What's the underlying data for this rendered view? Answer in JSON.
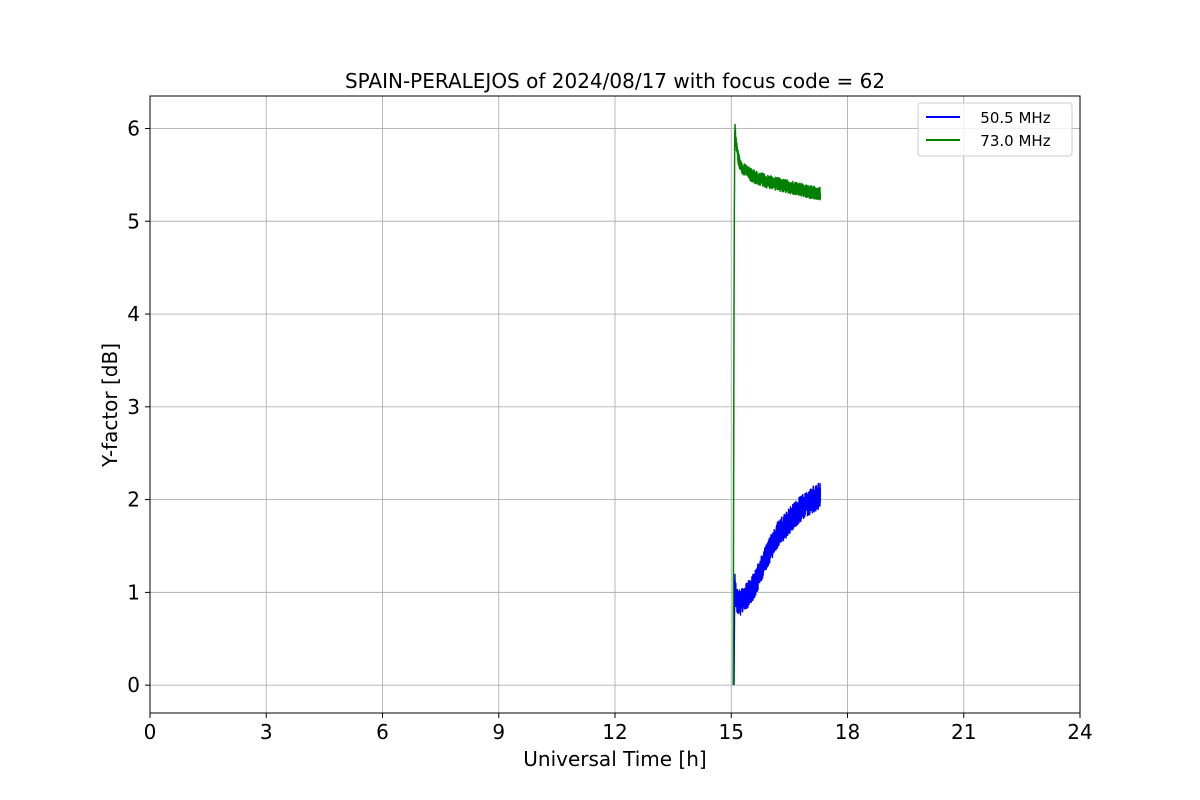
{
  "chart_data": {
    "type": "line",
    "title": "SPAIN-PERALEJOS of 2024/08/17 with focus code = 62",
    "xlabel": "Universal Time [h]",
    "ylabel": "Y-factor [dB]",
    "xlim": [
      0,
      24
    ],
    "ylim": [
      -0.3,
      6.35
    ],
    "xticks": [
      0,
      3,
      6,
      9,
      12,
      15,
      18,
      21,
      24
    ],
    "yticks": [
      0,
      1,
      2,
      3,
      4,
      5,
      6
    ],
    "grid": true,
    "legend_position": "upper right",
    "series": [
      {
        "name": "   50.5 MHz",
        "color": "#0000ff",
        "x": [
          15.07,
          15.08,
          15.09,
          15.1,
          15.12,
          15.15,
          15.2,
          15.3,
          15.4,
          15.5,
          15.6,
          15.7,
          15.8,
          15.9,
          16.0,
          16.1,
          16.2,
          16.3,
          16.4,
          16.5,
          16.6,
          16.7,
          16.8,
          16.9,
          17.0,
          17.1,
          17.2,
          17.3
        ],
        "y": [
          0.0,
          0.6,
          1.15,
          1.0,
          0.95,
          0.9,
          0.88,
          0.92,
          0.96,
          1.02,
          1.08,
          1.18,
          1.28,
          1.38,
          1.46,
          1.54,
          1.62,
          1.67,
          1.72,
          1.77,
          1.82,
          1.86,
          1.9,
          1.94,
          1.97,
          2.0,
          2.02,
          2.05
        ],
        "noise_band": 0.14
      },
      {
        "name": "   73.0 MHz",
        "color": "#008000",
        "x": [
          15.05,
          15.07,
          15.08,
          15.09,
          15.1,
          15.12,
          15.15,
          15.2,
          15.3,
          15.4,
          15.5,
          15.6,
          15.7,
          15.8,
          15.9,
          16.0,
          16.1,
          16.2,
          16.3,
          16.4,
          16.5,
          16.6,
          16.7,
          16.8,
          16.9,
          17.0,
          17.1,
          17.2,
          17.3
        ],
        "y": [
          0.0,
          3.85,
          5.1,
          5.95,
          6.0,
          5.85,
          5.75,
          5.65,
          5.57,
          5.53,
          5.5,
          5.48,
          5.46,
          5.45,
          5.43,
          5.42,
          5.41,
          5.4,
          5.39,
          5.38,
          5.37,
          5.36,
          5.35,
          5.34,
          5.33,
          5.32,
          5.31,
          5.3,
          5.3
        ],
        "noise_band": 0.07
      }
    ]
  }
}
